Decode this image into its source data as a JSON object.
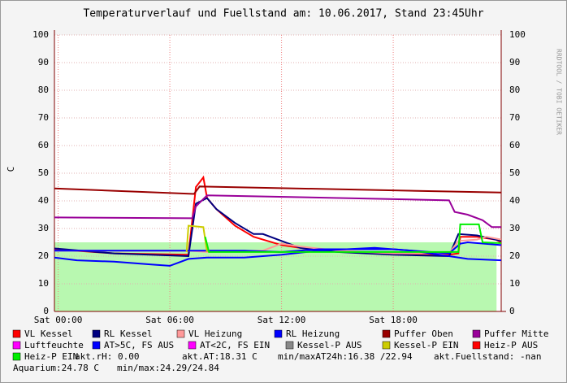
{
  "chart_data": {
    "type": "line",
    "title": "Temperaturverlauf und Fuellstand am: 10.06.2017, Stand 23:45Uhr",
    "y_label": "C",
    "side_note": "RRDTOOL / TOBI OETIKER",
    "xlim": [
      -0.2,
      23.8
    ],
    "ylim": [
      0,
      100
    ],
    "xticks": [
      {
        "value": 0,
        "label": "Sat 00:00"
      },
      {
        "value": 6,
        "label": "Sat 06:00"
      },
      {
        "value": 12,
        "label": "Sat 12:00"
      },
      {
        "value": 18,
        "label": "Sat 18:00"
      }
    ],
    "yticks": [
      0,
      10,
      20,
      30,
      40,
      50,
      60,
      70,
      80,
      90,
      100
    ],
    "grid": true,
    "fill_area": {
      "color": "#b8f8b0",
      "x": [
        -0.2,
        23.55
      ],
      "values": [
        25,
        25
      ]
    },
    "series": [
      {
        "name": "VL Kessel",
        "color": "#ff0000",
        "x": [
          -0.2,
          3,
          7,
          7.4,
          7.8,
          8,
          8.5,
          9.5,
          10.5,
          12,
          14,
          18,
          21,
          21.5,
          21.6,
          22.5,
          23.5,
          23.8
        ],
        "values": [
          22.5,
          21,
          20.5,
          45,
          48.5,
          41,
          37,
          31,
          27,
          24,
          22,
          21,
          20.5,
          21,
          27,
          27,
          26,
          25
        ]
      },
      {
        "name": "RL Kessel",
        "color": "#000080",
        "x": [
          -0.2,
          3,
          7,
          7.4,
          8,
          8.5,
          9.5,
          10.5,
          11,
          12,
          13,
          15,
          18,
          21,
          21.5,
          22.5,
          23.5,
          23.8
        ],
        "values": [
          22.8,
          21,
          20,
          39,
          41,
          37,
          32,
          28,
          28,
          25.5,
          23,
          21.5,
          20.5,
          20,
          28,
          27.5,
          26,
          25.5
        ]
      },
      {
        "name": "VL Heizung",
        "color": "#ff9999",
        "x": [
          -0.2,
          7,
          8,
          11,
          12,
          13,
          15,
          18,
          21,
          21.5,
          22.5,
          23,
          23.8
        ],
        "values": [
          22,
          22,
          21.5,
          22,
          24.5,
          23.5,
          22,
          21,
          21,
          25.5,
          26,
          27,
          26
        ]
      },
      {
        "name": "RL Heizung",
        "color": "#0000ff",
        "x": [
          -0.2,
          7,
          10,
          12,
          14,
          18,
          21,
          21.6,
          22,
          23.8
        ],
        "values": [
          22,
          22,
          22,
          21.5,
          22.5,
          22.5,
          21,
          24.5,
          25,
          24
        ]
      },
      {
        "name": "Puffer Oben",
        "color": "#990000",
        "x": [
          -0.2,
          7.3,
          7.6,
          23.8
        ],
        "values": [
          44.5,
          42.5,
          45.2,
          43
        ]
      },
      {
        "name": "Puffer Mitte",
        "color": "#990099",
        "x": [
          -0.2,
          7.2,
          7.4,
          8,
          21,
          21.3,
          22,
          22.8,
          23.3,
          23.8
        ],
        "values": [
          34,
          33.7,
          38,
          42,
          40.2,
          36,
          35,
          33,
          30.5,
          30.5
        ]
      },
      {
        "name": "Luftfeuchte",
        "color": "#ff00ff",
        "x": [],
        "values": []
      },
      {
        "name": "AT>5C, FS AUS",
        "color": "#0000ff",
        "x": [
          -0.2,
          1,
          3,
          5,
          6,
          7,
          8,
          10,
          12,
          14,
          17,
          19,
          21,
          22,
          23.8
        ],
        "values": [
          19.5,
          18.5,
          18,
          17,
          16.5,
          19,
          19.5,
          19.5,
          20.5,
          22,
          23,
          22,
          20,
          19,
          18.5
        ]
      },
      {
        "name": "AT<2C, FS EIN",
        "color": "#ff00ff",
        "x": [],
        "values": []
      },
      {
        "name": "Kessel-P AUS",
        "color": "#888888",
        "x": [],
        "values": []
      },
      {
        "name": "Kessel-P EIN",
        "color": "#cccc00",
        "x": [
          6.9,
          7,
          7.8,
          8
        ],
        "values": [
          21.5,
          31,
          30.5,
          21.5
        ]
      },
      {
        "name": "Heiz-P AUS",
        "color": "#ff0000",
        "x": [],
        "values": []
      },
      {
        "name": "Heiz-P EIN",
        "color": "#00ee00",
        "x": [
          7.9,
          8.1,
          21.5,
          21.6,
          22.6,
          22.8,
          23.8
        ],
        "values": [
          27,
          21.5,
          21.5,
          31.5,
          31.5,
          25,
          24.7
        ]
      }
    ],
    "status": [
      "akt.rH: 0.00",
      "akt.AT:18.31 C",
      "min/maxAT24h:16.38 /22.94",
      "akt.Fuellstand: -nan",
      "Aquarium:24.78 C",
      "min/max:24.29/24.84"
    ]
  }
}
